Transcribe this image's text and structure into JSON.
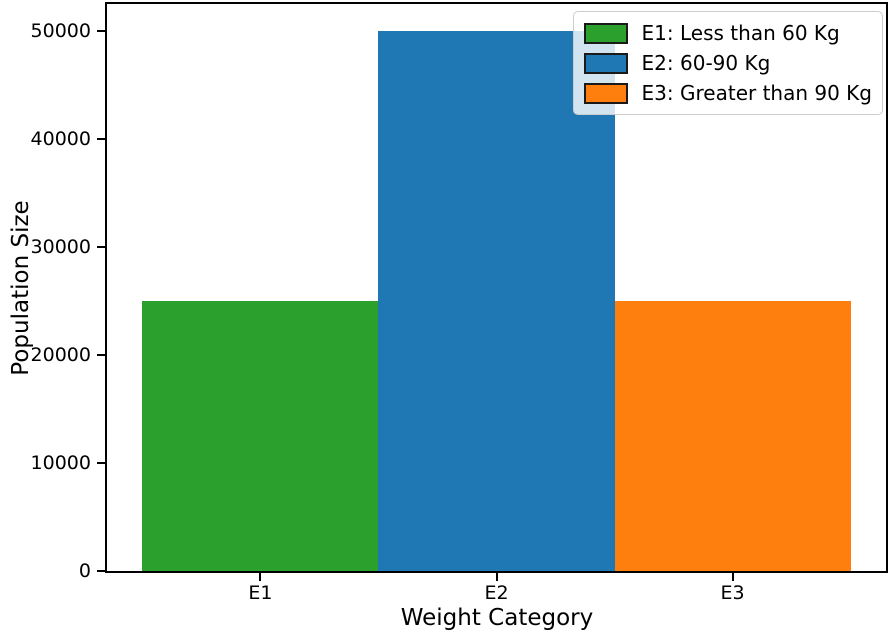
{
  "chart_data": {
    "type": "bar",
    "title": "",
    "xlabel": "Weight Category",
    "ylabel": "Population Size",
    "categories": [
      "E1",
      "E2",
      "E3"
    ],
    "values": [
      25000,
      50000,
      25000
    ],
    "bar_colors": [
      "#2ca02c",
      "#1f77b4",
      "#ff7f0e"
    ],
    "bar_width": 1.0,
    "xlim": [
      -0.65,
      2.65
    ],
    "ylim": [
      0,
      52500
    ],
    "yticks": [
      0,
      10000,
      20000,
      30000,
      40000,
      50000
    ],
    "grid": false,
    "axis_color": "#000000",
    "text_color": "#000000",
    "legend": {
      "position": "upper-right",
      "entries": [
        {
          "label": "E1: Less than 60 Kg",
          "color": "#2ca02c"
        },
        {
          "label": "E2: 60-90 Kg",
          "color": "#1f77b4"
        },
        {
          "label": "E3: Greater than 90 Kg",
          "color": "#ff7f0e"
        }
      ]
    }
  }
}
